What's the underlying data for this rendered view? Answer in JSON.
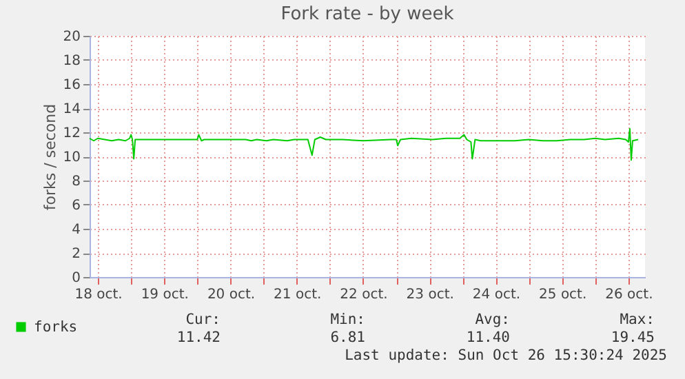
{
  "chart_data": {
    "type": "line",
    "title": "Fork rate - by week",
    "ylabel": "forks / second",
    "x": [
      "2025-10-18T09:00",
      "2025-10-18T10:30",
      "2025-10-18T12:00",
      "2025-10-18T14:30",
      "2025-10-18T17:00",
      "2025-10-18T19:30",
      "2025-10-18T22:00",
      "2025-10-18T23:30",
      "2025-10-19T00:00",
      "2025-10-19T00:30",
      "2025-10-19T01:00",
      "2025-10-19T01:30",
      "2025-10-19T11:30",
      "2025-10-20T00:00",
      "2025-10-20T00:30",
      "2025-10-20T01:30",
      "2025-10-20T02:30",
      "2025-10-20T17:30",
      "2025-10-20T19:30",
      "2025-10-20T21:30",
      "2025-10-21T01:00",
      "2025-10-21T03:30",
      "2025-10-21T08:30",
      "2025-10-21T11:00",
      "2025-10-21T16:00",
      "2025-10-21T17:30",
      "2025-10-21T18:30",
      "2025-10-21T20:30",
      "2025-10-21T22:30",
      "2025-10-22T04:30",
      "2025-10-22T12:00",
      "2025-10-22T22:00",
      "2025-10-23T00:00",
      "2025-10-23T00:30",
      "2025-10-23T01:30",
      "2025-10-23T05:30",
      "2025-10-23T13:00",
      "2025-10-23T18:00",
      "2025-10-23T23:00",
      "2025-10-24T00:30",
      "2025-10-24T01:30",
      "2025-10-24T03:00",
      "2025-10-24T03:30",
      "2025-10-24T04:30",
      "2025-10-24T06:30",
      "2025-10-24T14:00",
      "2025-10-24T19:00",
      "2025-10-25T00:00",
      "2025-10-25T05:00",
      "2025-10-25T10:00",
      "2025-10-25T15:00",
      "2025-10-25T20:00",
      "2025-10-26T00:00",
      "2025-10-26T03:30",
      "2025-10-26T08:30",
      "2025-10-26T11:00",
      "2025-10-26T12:00",
      "2025-10-26T12:30",
      "2025-10-26T13:00",
      "2025-10-26T13:30",
      "2025-10-26T15:30"
    ],
    "series": [
      {
        "name": "forks",
        "color": "#00cc00",
        "values": [
          11.5,
          11.3,
          11.5,
          11.4,
          11.3,
          11.4,
          11.3,
          11.5,
          11.8,
          11.4,
          9.8,
          11.4,
          11.4,
          11.4,
          11.8,
          11.3,
          11.4,
          11.4,
          11.3,
          11.4,
          11.3,
          11.4,
          11.3,
          11.4,
          11.4,
          10.1,
          11.4,
          11.6,
          11.4,
          11.4,
          11.3,
          11.4,
          11.4,
          10.9,
          11.4,
          11.5,
          11.4,
          11.5,
          11.5,
          11.8,
          11.4,
          11.2,
          9.8,
          11.4,
          11.3,
          11.3,
          11.3,
          11.4,
          11.3,
          11.3,
          11.4,
          11.4,
          11.5,
          11.4,
          11.5,
          11.4,
          11.2,
          12.3,
          9.7,
          11.3,
          11.4
        ]
      }
    ],
    "xlim": [
      "2025-10-18T09:00",
      "2025-10-26T18:00"
    ],
    "xticks": [
      {
        "value": "2025-10-18T12:00",
        "label": "18 oct."
      },
      {
        "value": "2025-10-19T00:00",
        "label": null
      },
      {
        "value": "2025-10-19T12:00",
        "label": "19 oct."
      },
      {
        "value": "2025-10-20T00:00",
        "label": null
      },
      {
        "value": "2025-10-20T12:00",
        "label": "20 oct."
      },
      {
        "value": "2025-10-21T00:00",
        "label": null
      },
      {
        "value": "2025-10-21T12:00",
        "label": "21 oct."
      },
      {
        "value": "2025-10-22T00:00",
        "label": null
      },
      {
        "value": "2025-10-22T12:00",
        "label": "22 oct."
      },
      {
        "value": "2025-10-23T00:00",
        "label": null
      },
      {
        "value": "2025-10-23T12:00",
        "label": "23 oct."
      },
      {
        "value": "2025-10-24T00:00",
        "label": null
      },
      {
        "value": "2025-10-24T12:00",
        "label": "24 oct."
      },
      {
        "value": "2025-10-25T00:00",
        "label": null
      },
      {
        "value": "2025-10-25T12:00",
        "label": "25 oct."
      },
      {
        "value": "2025-10-26T00:00",
        "label": null
      },
      {
        "value": "2025-10-26T12:00",
        "label": "26 oct."
      }
    ],
    "ylim": [
      0,
      20
    ],
    "yticks": [
      0,
      2,
      4,
      6,
      8,
      10,
      12,
      14,
      16,
      18,
      20
    ],
    "grid": true,
    "legend": "bottom left",
    "marker": "none",
    "line_style": "solid",
    "annotations": [
      "Cur:",
      "11.42",
      "Min:",
      "6.81",
      "Avg:",
      "11.40",
      "Max:",
      "19.45",
      "Last update: Sun Oct 26 15:30:24 2025"
    ]
  }
}
